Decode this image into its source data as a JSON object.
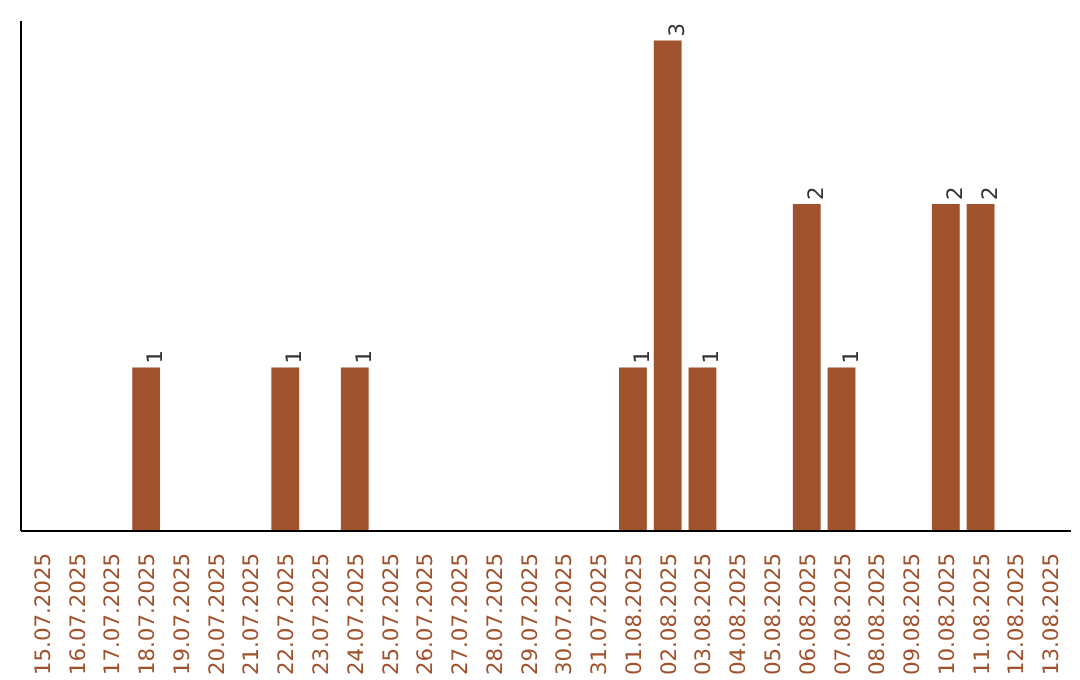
{
  "chart_data": {
    "type": "bar",
    "categories": [
      "15.07.2025",
      "16.07.2025",
      "17.07.2025",
      "18.07.2025",
      "19.07.2025",
      "20.07.2025",
      "21.07.2025",
      "22.07.2025",
      "23.07.2025",
      "24.07.2025",
      "25.07.2025",
      "26.07.2025",
      "27.07.2025",
      "28.07.2025",
      "29.07.2025",
      "30.07.2025",
      "31.07.2025",
      "01.08.2025",
      "02.08.2025",
      "03.08.2025",
      "04.08.2025",
      "05.08.2025",
      "06.08.2025",
      "07.08.2025",
      "08.08.2025",
      "09.08.2025",
      "10.08.2025",
      "11.08.2025",
      "12.08.2025",
      "13.08.2025"
    ],
    "values": [
      0,
      0,
      0,
      1,
      0,
      0,
      0,
      1,
      0,
      1,
      0,
      0,
      0,
      0,
      0,
      0,
      0,
      1,
      3,
      1,
      0,
      0,
      2,
      1,
      0,
      0,
      2,
      2,
      0,
      0
    ],
    "value_labels": [
      null,
      null,
      null,
      "1",
      null,
      null,
      null,
      "1",
      null,
      "1",
      null,
      null,
      null,
      null,
      null,
      null,
      null,
      "1",
      "3",
      "1",
      null,
      null,
      "2",
      "1",
      null,
      null,
      "2",
      "2",
      null,
      null
    ],
    "color": "#a0522d",
    "grid": false,
    "tick_labels": "x"
  }
}
